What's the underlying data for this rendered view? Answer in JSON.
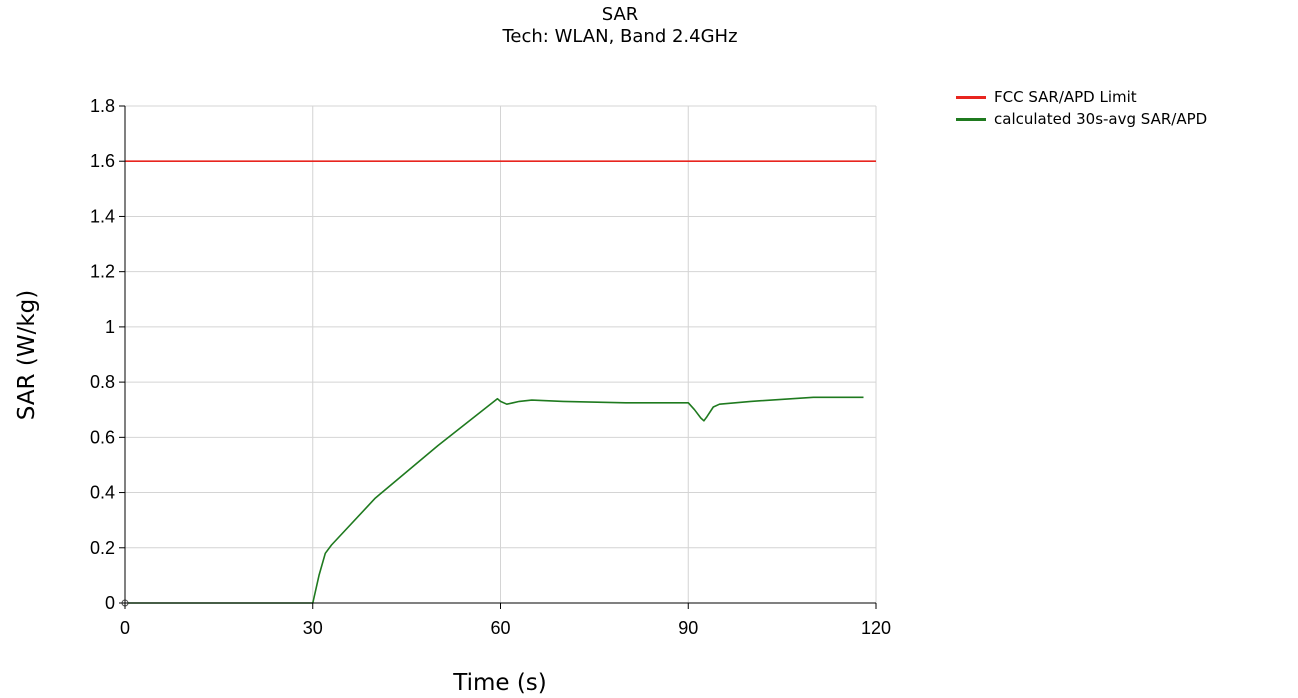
{
  "chart_data": {
    "type": "line",
    "title": "SAR",
    "subtitle": "Tech: WLAN, Band 2.4GHz",
    "xlabel": "Time (s)",
    "ylabel": "SAR (W/kg)",
    "xlim": [
      0,
      120
    ],
    "ylim": [
      0,
      1.8
    ],
    "x_ticks": [
      0,
      30,
      60,
      90,
      120
    ],
    "x_tick_labels": [
      "0",
      "30",
      "60",
      "90",
      "120"
    ],
    "y_ticks": [
      0,
      0.2,
      0.4,
      0.6,
      0.8,
      1,
      1.2,
      1.4,
      1.6,
      1.8
    ],
    "y_tick_labels": [
      "0",
      "0.2",
      "0.4",
      "0.6",
      "0.8",
      "1",
      "1.2",
      "1.4",
      "1.6",
      "1.8"
    ],
    "grid": true,
    "legend_position": "top-right, outside plot",
    "series": [
      {
        "name": "FCC SAR/APD Limit",
        "color": "#e8251f",
        "x": [
          0,
          120
        ],
        "y": [
          1.6,
          1.6
        ]
      },
      {
        "name": "calculated 30s-avg SAR/APD",
        "color": "#1f7a1f",
        "x": [
          0,
          30,
          31,
          32,
          33,
          40,
          50,
          59.5,
          60,
          61,
          62,
          63,
          65,
          70,
          80,
          90,
          91,
          92,
          92.5,
          93,
          94,
          95,
          100,
          110,
          118
        ],
        "y": [
          0,
          0,
          0.1,
          0.18,
          0.21,
          0.38,
          0.57,
          0.74,
          0.73,
          0.72,
          0.725,
          0.73,
          0.735,
          0.73,
          0.725,
          0.725,
          0.7,
          0.67,
          0.66,
          0.675,
          0.71,
          0.72,
          0.73,
          0.745,
          0.745
        ]
      }
    ]
  }
}
